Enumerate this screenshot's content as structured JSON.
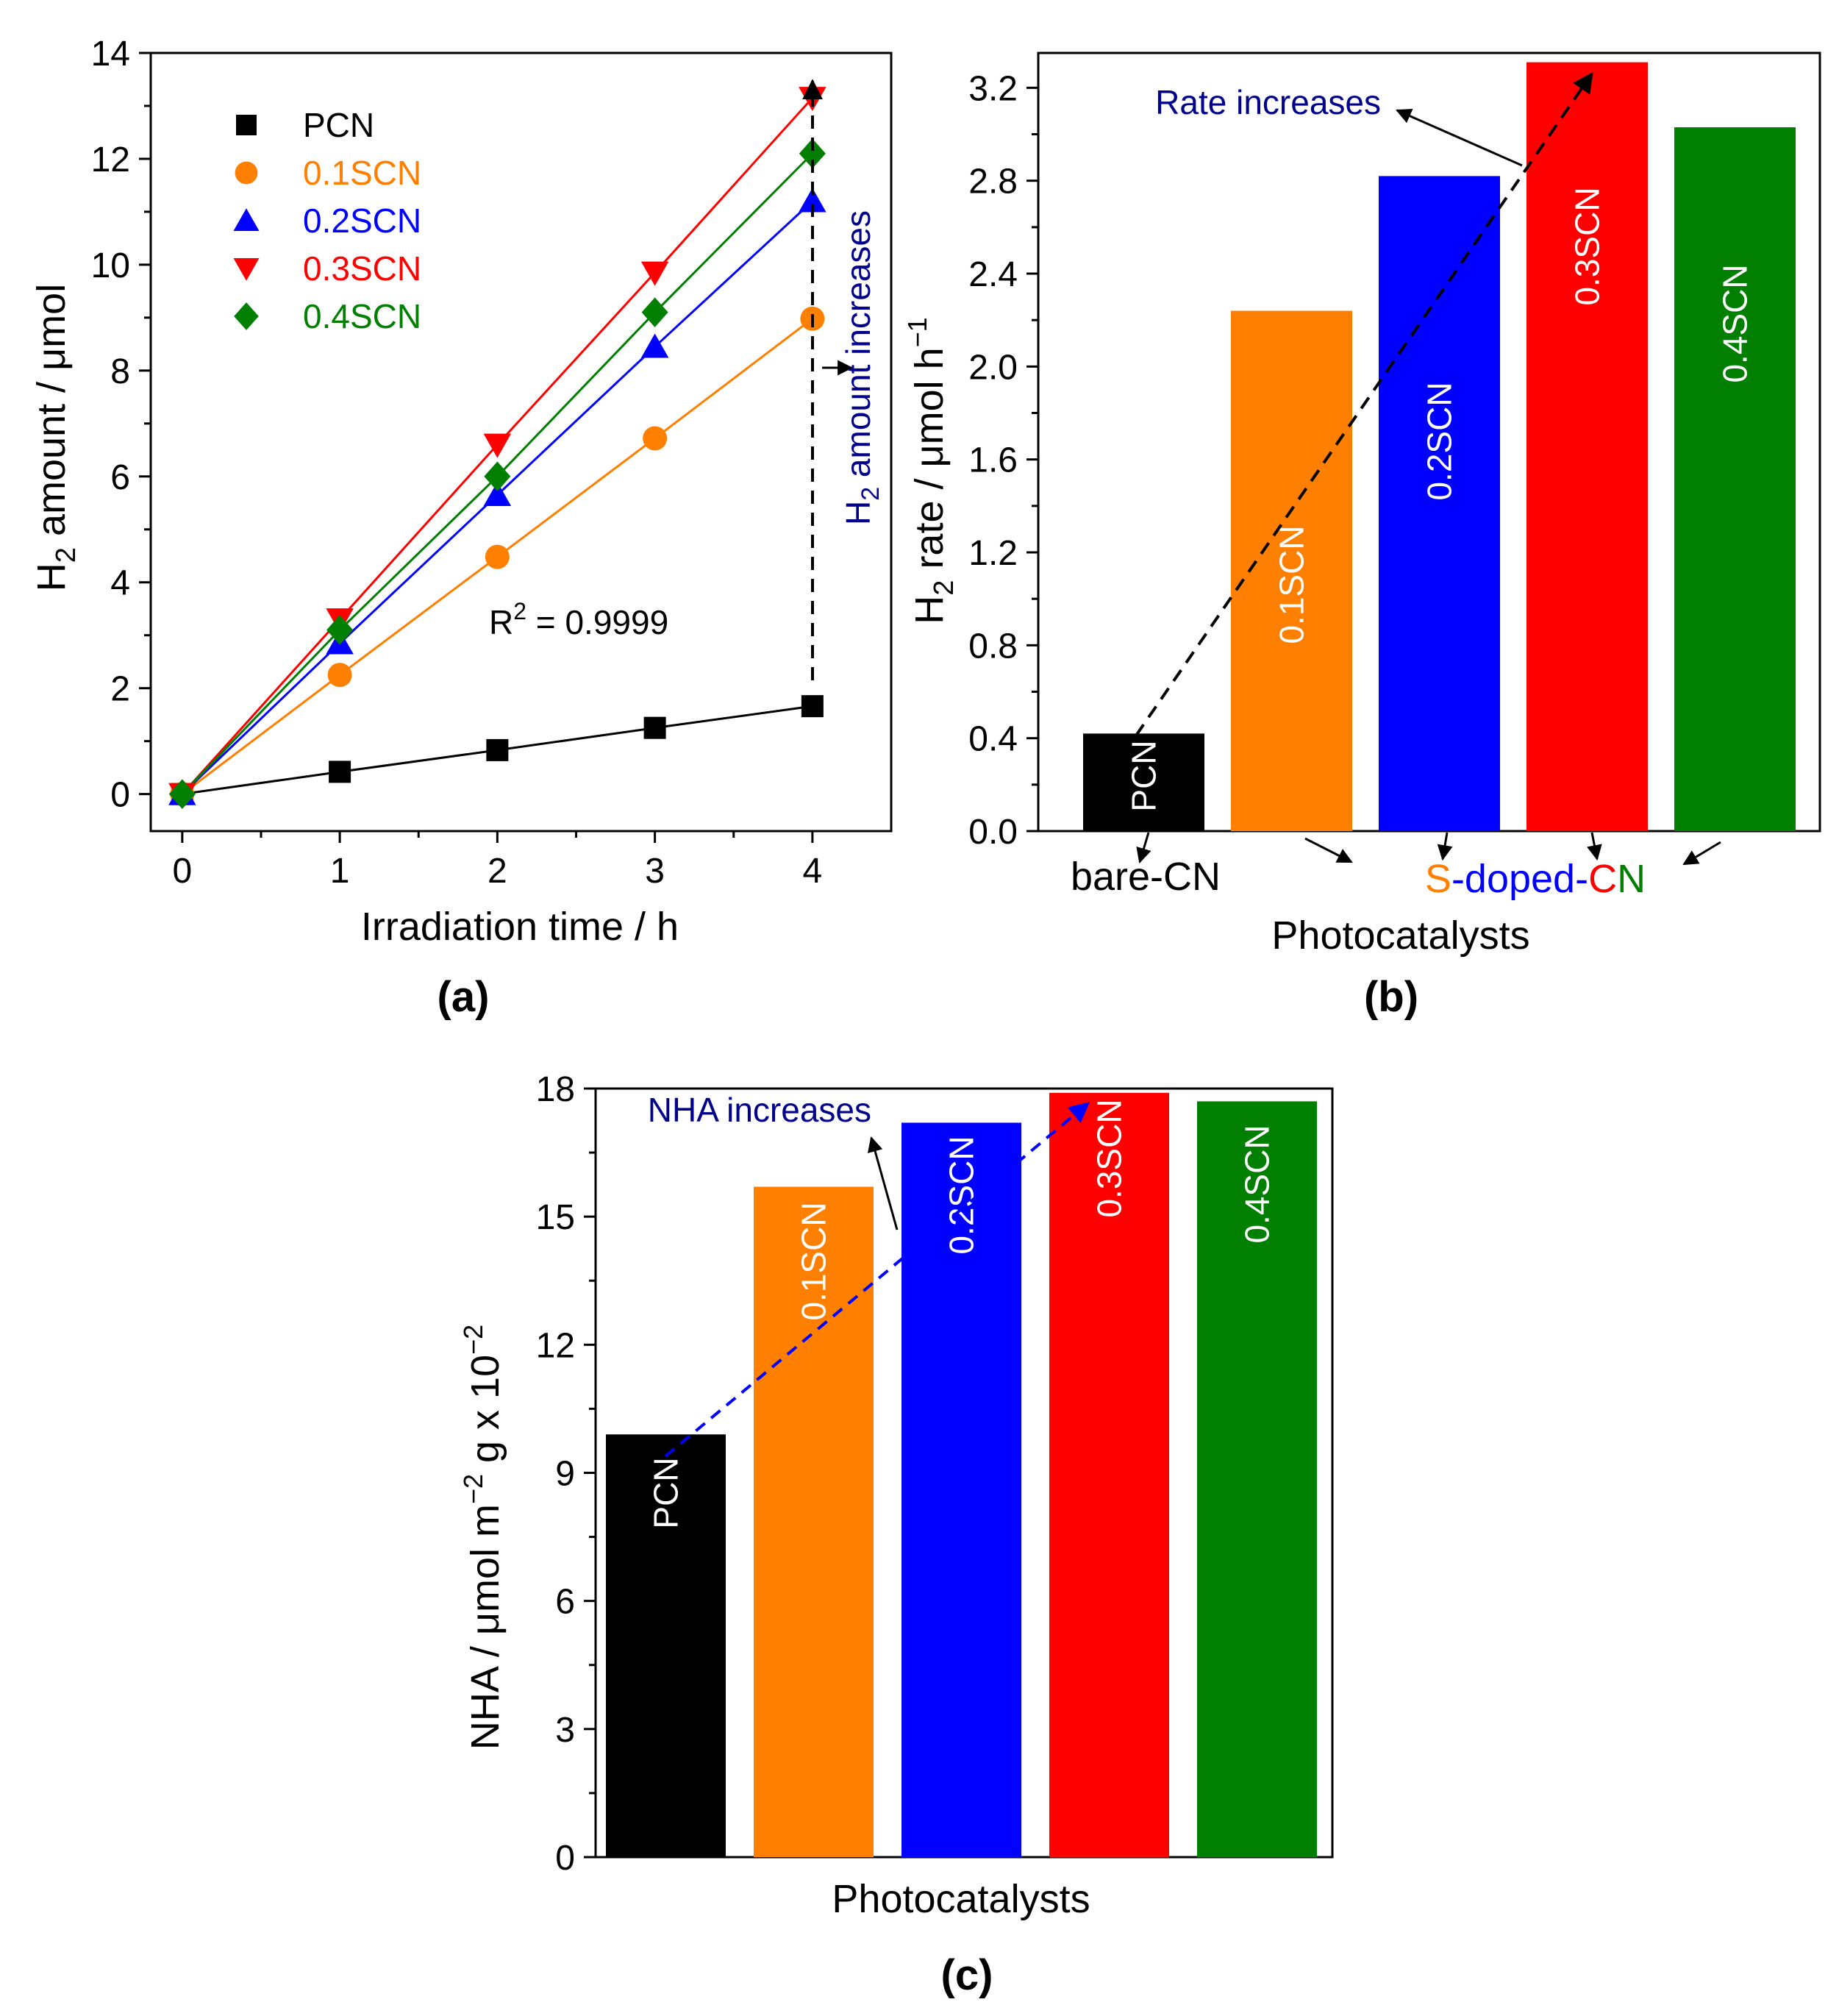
{
  "colors": {
    "PCN": "#000000",
    "0.1SCN": "#ff7f00",
    "0.2SCN": "#0000ff",
    "0.3SCN": "#ff0000",
    "0.4SCN": "#007f00",
    "annotation": "#00008b"
  },
  "chart_data": [
    {
      "type": "line",
      "panel": "(a)",
      "title": "",
      "xlabel": "Irradiation time / h",
      "ylabel_main": "H",
      "ylabel_sub": "2",
      "ylabel_rest": " amount / μmol",
      "xlim": [
        -0.2,
        4.5
      ],
      "ylim": [
        -0.7,
        14
      ],
      "xticks": [
        "0",
        "1",
        "2",
        "3",
        "4"
      ],
      "yticks": [
        "0",
        "2",
        "4",
        "6",
        "8",
        "10",
        "12",
        "14"
      ],
      "x": [
        0,
        1,
        2,
        3,
        4
      ],
      "series": [
        {
          "name": "PCN",
          "marker": "square",
          "values": [
            0,
            0.42,
            0.83,
            1.25,
            1.66
          ]
        },
        {
          "name": "0.1SCN",
          "marker": "circle",
          "values": [
            0,
            2.25,
            4.48,
            6.72,
            8.98
          ]
        },
        {
          "name": "0.2SCN",
          "marker": "triangle-up",
          "values": [
            0,
            2.85,
            5.65,
            8.45,
            11.2
          ]
        },
        {
          "name": "0.3SCN",
          "marker": "triangle-down",
          "values": [
            0,
            3.3,
            6.6,
            9.85,
            13.15
          ]
        },
        {
          "name": "0.4SCN",
          "marker": "diamond",
          "values": [
            0,
            3.1,
            6.0,
            9.1,
            12.1
          ]
        }
      ],
      "legend_position": "top-left",
      "annotations": {
        "r2_main": "R",
        "r2_sup": "2",
        "r2_rest": " = 0.9999",
        "arrow_main": "H",
        "arrow_sub": "2",
        "arrow_rest": " amount increases"
      }
    },
    {
      "type": "bar",
      "panel": "(b)",
      "title": "",
      "xlabel": "Photocatalysts",
      "ylabel_main": "H",
      "ylabel_sub": "2",
      "ylabel_rest": " rate / μmol h",
      "ylabel_sup": "−1",
      "ylim": [
        0,
        3.35
      ],
      "yticks": [
        "0.0",
        "0.4",
        "0.8",
        "1.2",
        "1.6",
        "2.0",
        "2.4",
        "2.8",
        "3.2"
      ],
      "categories": [
        "PCN",
        "0.1SCN",
        "0.2SCN",
        "0.3SCN",
        "0.4SCN"
      ],
      "values": [
        0.42,
        2.24,
        2.82,
        3.31,
        3.03
      ],
      "annotations": {
        "rate": "Rate increases",
        "bare": "bare-CN",
        "doped_parts": [
          {
            "text": "S",
            "color": "#ff7f00"
          },
          {
            "text": "-doped-",
            "color": "#0000ff"
          },
          {
            "text": "C",
            "color": "#ff0000"
          },
          {
            "text": "N",
            "color": "#007f00"
          }
        ]
      }
    },
    {
      "type": "bar",
      "panel": "(c)",
      "title": "",
      "xlabel": "Photocatalysts",
      "ylabel_a": "NHA / μmol m",
      "ylabel_sup1": "−2",
      "ylabel_b": " g x 10",
      "ylabel_sup2": "−2",
      "ylim": [
        0,
        18
      ],
      "yticks": [
        "0",
        "3",
        "6",
        "9",
        "12",
        "15",
        "18"
      ],
      "categories": [
        "PCN",
        "0.1SCN",
        "0.2SCN",
        "0.3SCN",
        "0.4SCN"
      ],
      "values": [
        9.9,
        15.7,
        17.2,
        17.9,
        17.7
      ],
      "annotations": {
        "nha": "NHA increases"
      }
    }
  ]
}
